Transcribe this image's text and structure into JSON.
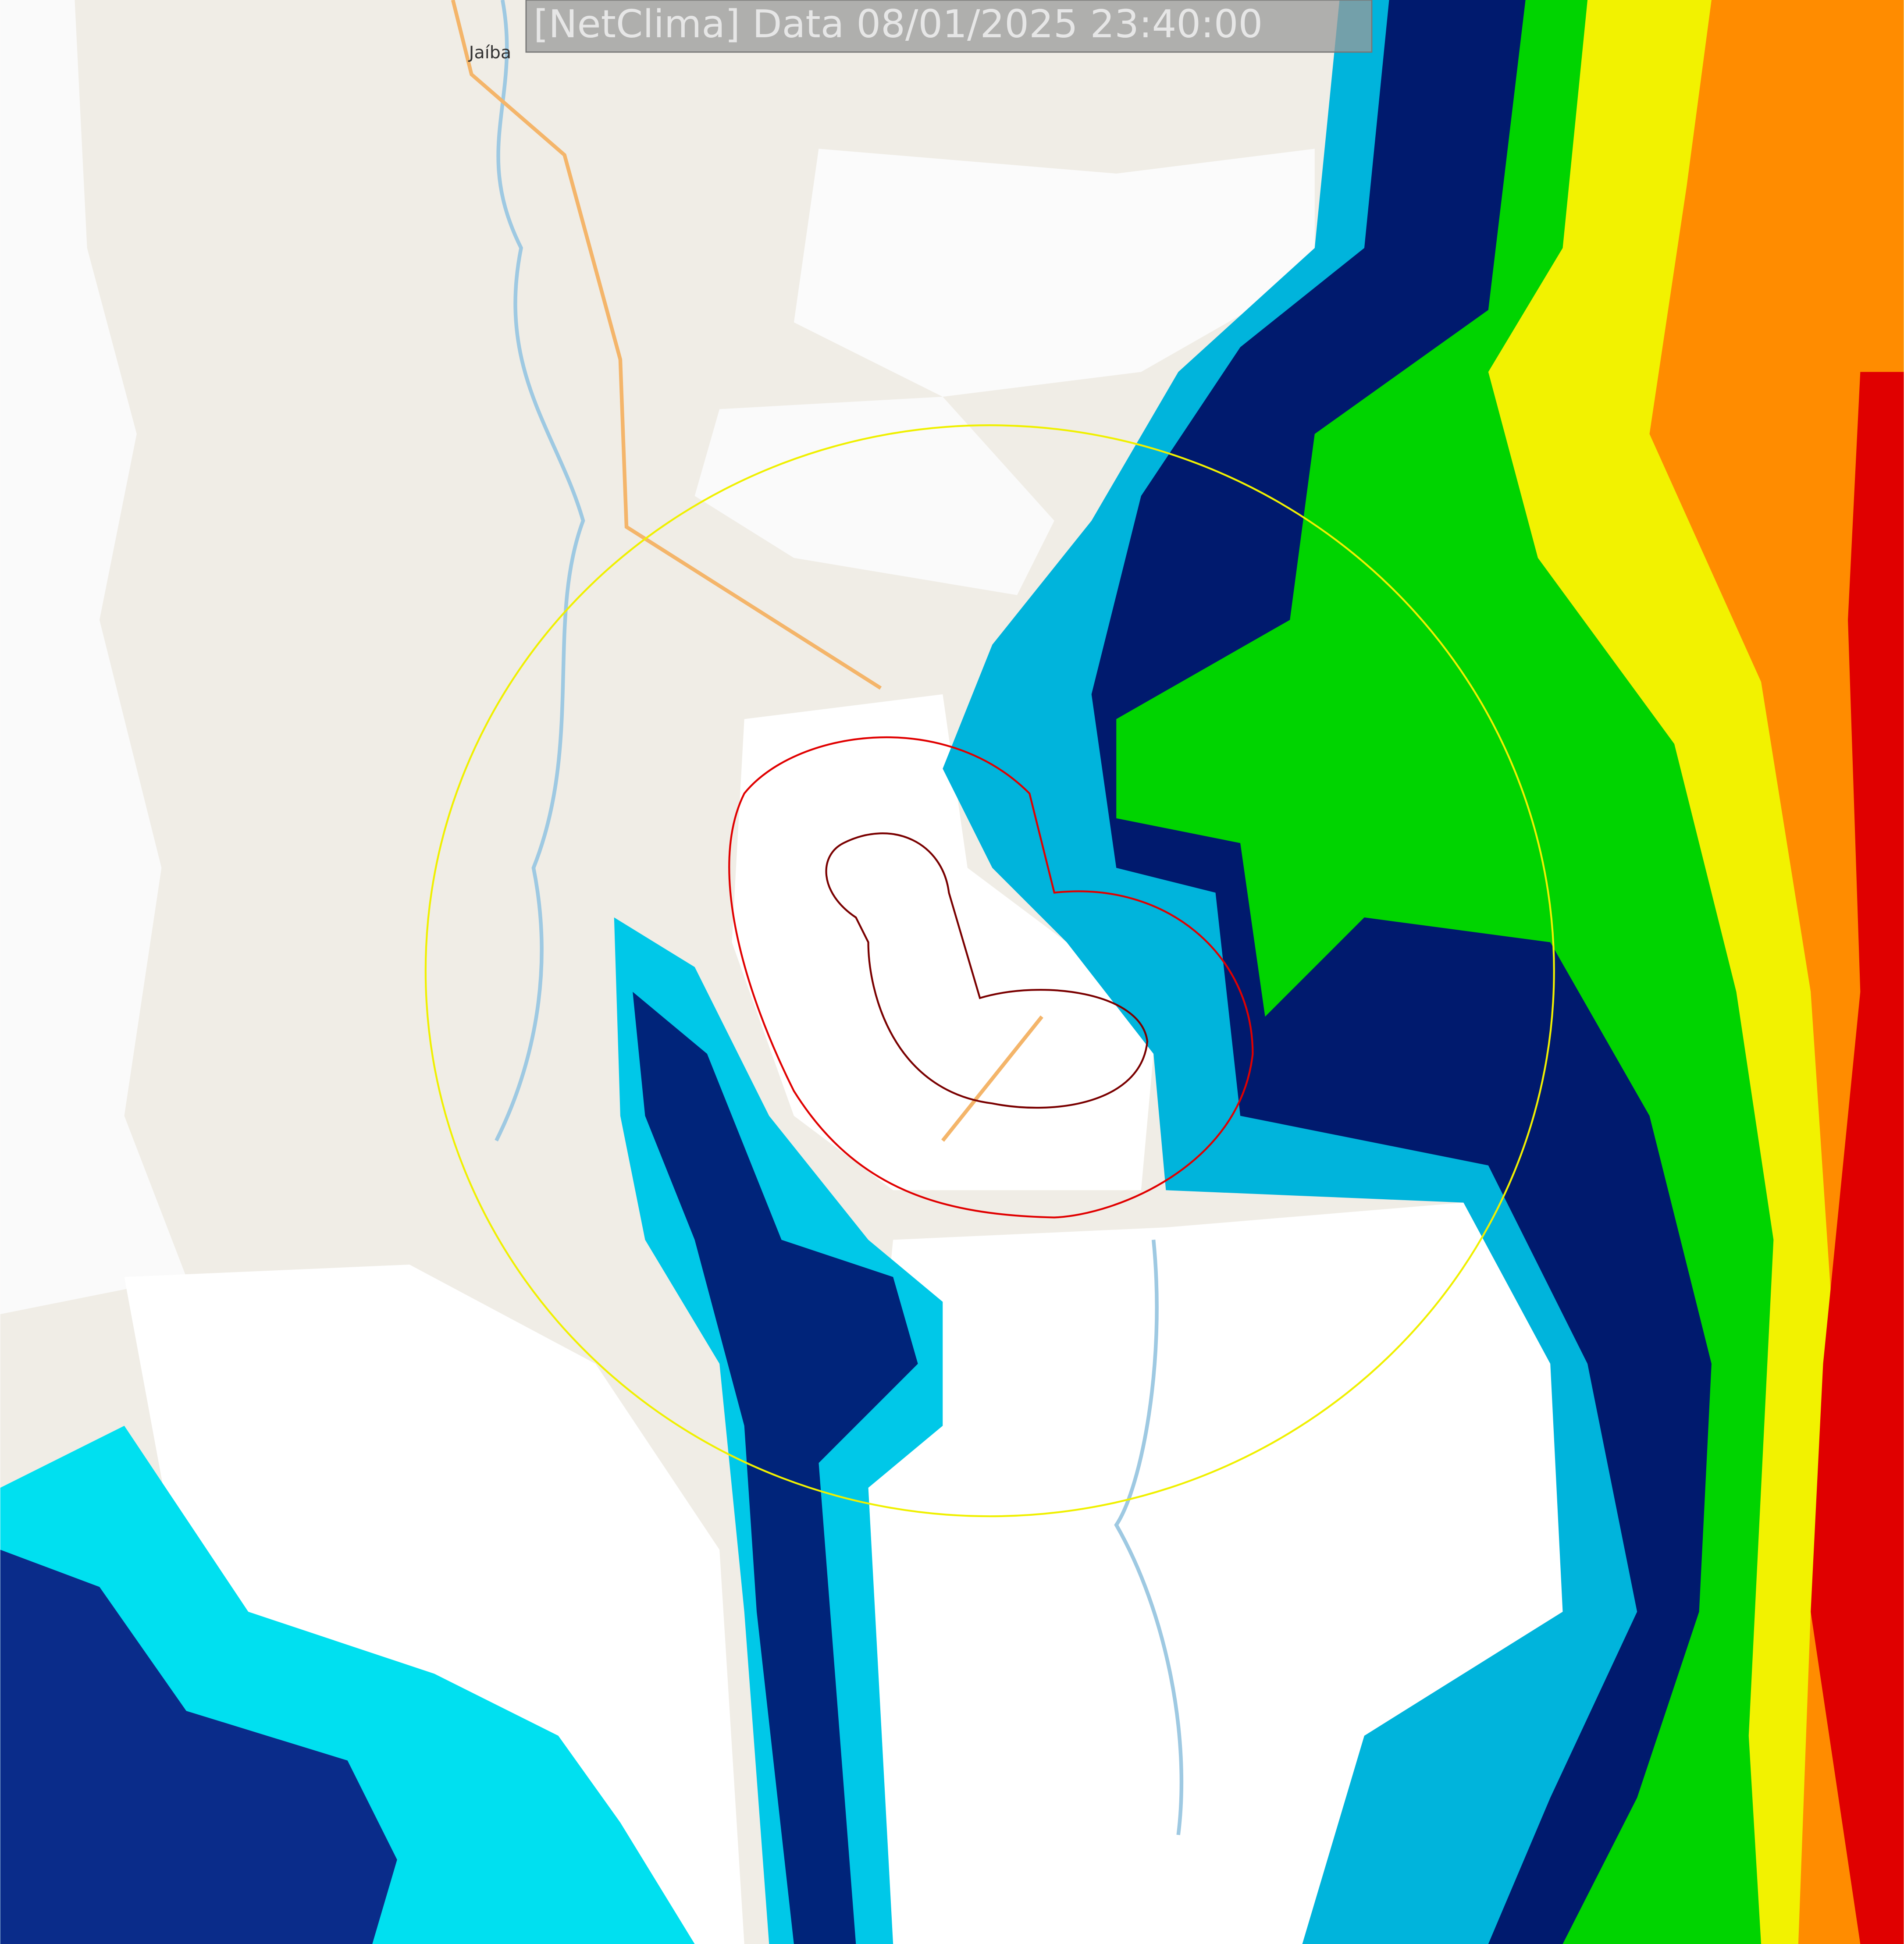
{
  "header": {
    "title": "[NetClima] Data 08/01/2025 23:40:00"
  },
  "map": {
    "labels": [
      "Jaíba"
    ]
  }
}
